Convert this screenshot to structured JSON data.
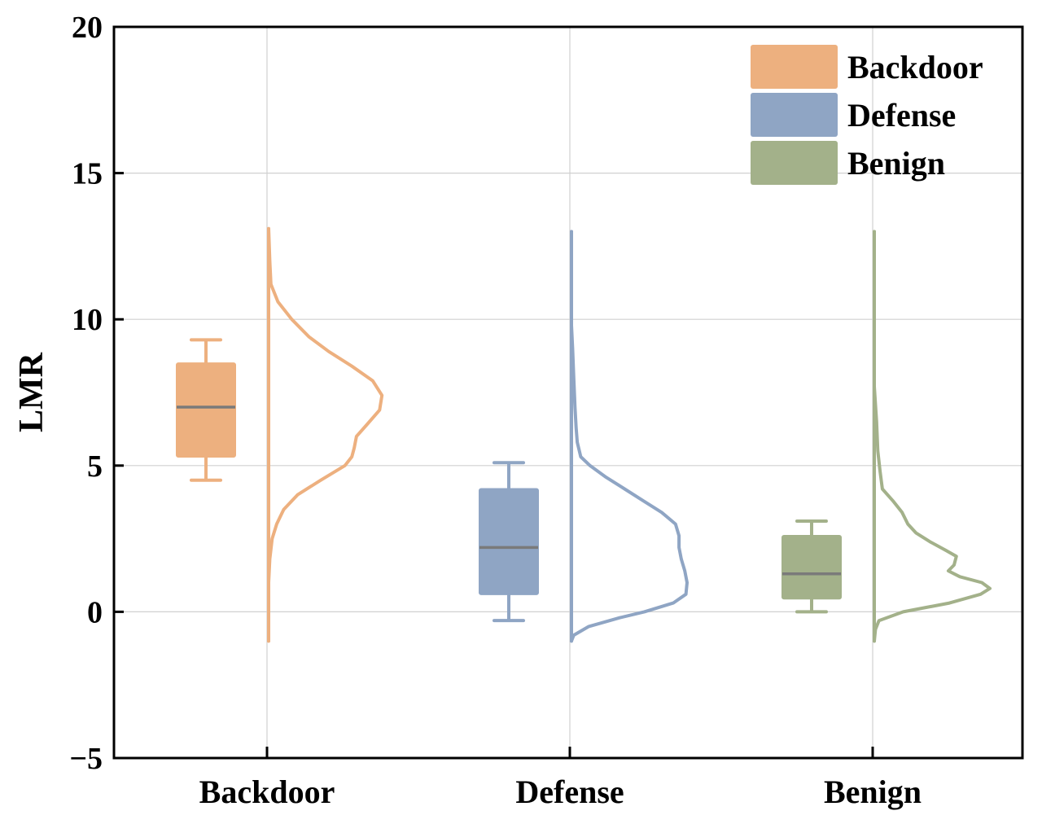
{
  "chart_data": {
    "type": "box+half-violin",
    "title": "",
    "xlabel": "",
    "ylabel": "LMR",
    "ylim": [
      -5,
      20
    ],
    "yticks": [
      -5,
      0,
      5,
      10,
      15,
      20
    ],
    "ytick_labels": [
      "−5",
      "0",
      "5",
      "10",
      "15",
      "20"
    ],
    "grid": true,
    "legend_position": "top-right",
    "categories": [
      "Backdoor",
      "Defense",
      "Benign"
    ],
    "series": [
      {
        "name": "Backdoor",
        "color": "#EDB07F",
        "box": {
          "whisker_low": 4.5,
          "q1": 5.3,
          "median": 7.0,
          "q3": 8.5,
          "whisker_high": 9.3
        },
        "density": {
          "y": [
            -1.0,
            1.0,
            1.8,
            2.5,
            3.0,
            3.5,
            4.0,
            4.5,
            5.0,
            5.3,
            5.6,
            6.0,
            6.4,
            6.9,
            7.4,
            7.9,
            8.4,
            8.9,
            9.4,
            10.0,
            10.6,
            11.2,
            12.0,
            13.1
          ],
          "density": [
            0.0,
            0.0,
            0.01,
            0.03,
            0.07,
            0.13,
            0.25,
            0.45,
            0.66,
            0.72,
            0.74,
            0.76,
            0.85,
            0.96,
            0.98,
            0.9,
            0.72,
            0.52,
            0.35,
            0.2,
            0.08,
            0.02,
            0.01,
            0.0
          ]
        }
      },
      {
        "name": "Defense",
        "color": "#8FA5C4",
        "box": {
          "whisker_low": -0.3,
          "q1": 0.6,
          "median": 2.2,
          "q3": 4.2,
          "whisker_high": 5.1
        },
        "density": {
          "y": [
            -1.0,
            -0.8,
            -0.5,
            -0.2,
            0.0,
            0.3,
            0.6,
            1.0,
            1.4,
            1.8,
            2.2,
            2.6,
            3.0,
            3.4,
            3.8,
            4.2,
            4.6,
            5.0,
            5.3,
            5.8,
            6.3,
            7.0,
            8.0,
            9.0,
            9.8,
            13.0
          ],
          "density": [
            0.0,
            0.02,
            0.15,
            0.42,
            0.63,
            0.88,
            0.99,
            1.0,
            0.98,
            0.95,
            0.93,
            0.93,
            0.9,
            0.78,
            0.62,
            0.46,
            0.3,
            0.16,
            0.08,
            0.05,
            0.04,
            0.03,
            0.02,
            0.01,
            0.0,
            0.0
          ]
        }
      },
      {
        "name": "Benign",
        "color": "#A3B18A",
        "box": {
          "whisker_low": 0.0,
          "q1": 0.45,
          "median": 1.3,
          "q3": 2.6,
          "whisker_high": 3.1
        },
        "density": {
          "y": [
            -1.0,
            -0.6,
            -0.3,
            0.0,
            0.3,
            0.6,
            0.8,
            1.0,
            1.2,
            1.4,
            1.6,
            1.9,
            2.1,
            2.4,
            2.7,
            3.0,
            3.4,
            3.8,
            4.2,
            4.8,
            5.5,
            6.5,
            7.7,
            13.0
          ],
          "density": [
            0.0,
            0.01,
            0.04,
            0.25,
            0.65,
            0.92,
            1.0,
            0.93,
            0.74,
            0.64,
            0.69,
            0.71,
            0.62,
            0.48,
            0.36,
            0.29,
            0.24,
            0.16,
            0.07,
            0.05,
            0.03,
            0.02,
            0.0,
            0.0
          ]
        }
      }
    ],
    "legend": [
      {
        "label": "Backdoor",
        "color": "#EDB07F"
      },
      {
        "label": "Defense",
        "color": "#8FA5C4"
      },
      {
        "label": "Benign",
        "color": "#A3B18A"
      }
    ],
    "median_line_color": "#7a7a7a"
  }
}
